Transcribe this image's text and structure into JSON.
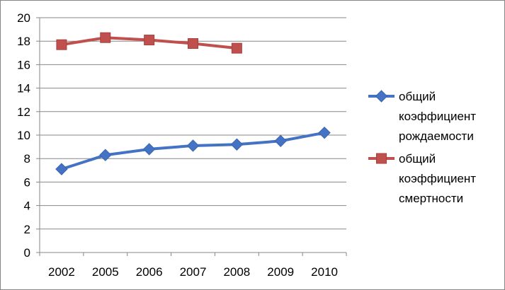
{
  "chart_data": {
    "type": "line",
    "title": "",
    "xlabel": "",
    "ylabel": "",
    "categories": [
      "2002",
      "2005",
      "2006",
      "2007",
      "2008",
      "2009",
      "2010"
    ],
    "ylim": [
      0,
      20
    ],
    "yticks": [
      0,
      2,
      4,
      6,
      8,
      10,
      12,
      14,
      16,
      18,
      20
    ],
    "grid": "horizontal",
    "legend_position": "right",
    "series": [
      {
        "name": "общий коэффициент рождаемости",
        "legend_lines": [
          "общий",
          "коэффициент",
          "рождаемости"
        ],
        "values": [
          7.1,
          8.3,
          8.8,
          9.1,
          9.2,
          9.5,
          10.2
        ],
        "color": "#4472C4",
        "marker": "diamond"
      },
      {
        "name": "общий коэффициент смертности",
        "legend_lines": [
          "общий",
          "коэффициент",
          "смертности"
        ],
        "values": [
          17.7,
          18.3,
          18.1,
          17.8,
          17.4,
          null,
          null
        ],
        "color": "#C0504D",
        "marker": "square"
      }
    ]
  }
}
